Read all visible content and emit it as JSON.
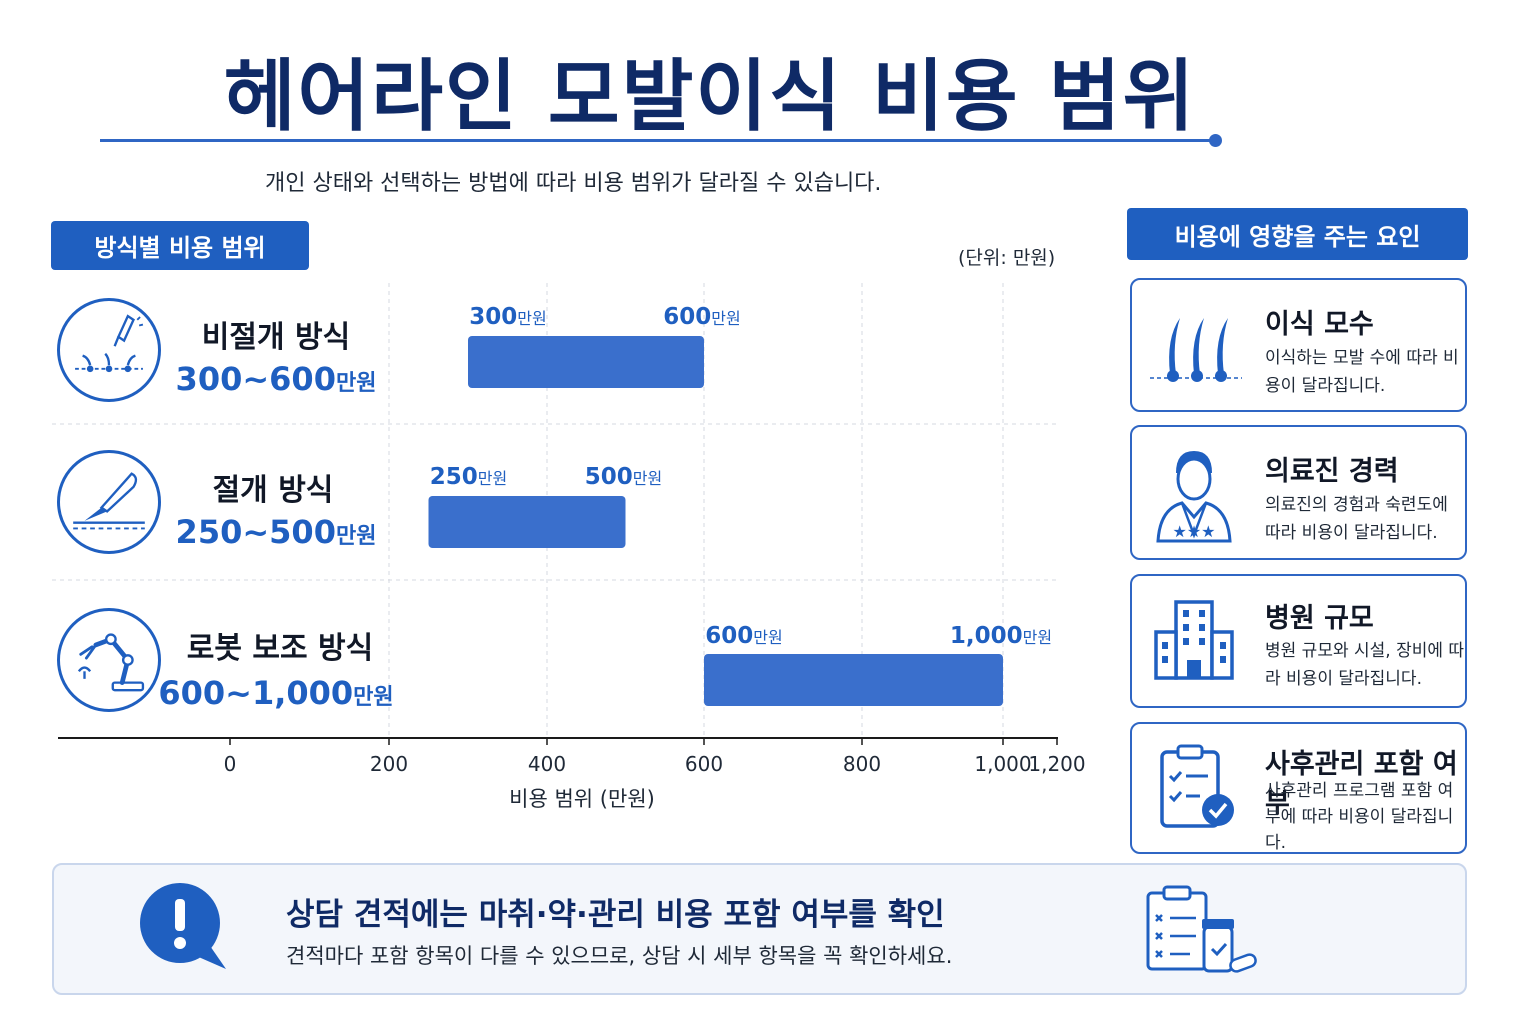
{
  "header": {
    "title": "헤어라인 모발이식 비용 범위",
    "subtitle": "개인 상태와 선택하는 방법에 따라 비용 범위가 달라질 수 있습니다."
  },
  "methods_section": {
    "tab_label": "방식별 비용 범위",
    "unit_label": "(단위: 만원)",
    "rows": [
      {
        "name": "비절개 방식",
        "range_num": "300~600",
        "range_unit": "만원",
        "icon": "needle-hair-icon"
      },
      {
        "name": "절개 방식",
        "range_num": "250~500",
        "range_unit": "만원",
        "icon": "scalpel-icon"
      },
      {
        "name": "로봇 보조 방식",
        "range_num": "600~1,000",
        "range_unit": "만원",
        "icon": "robot-arm-icon"
      }
    ]
  },
  "chart_data": {
    "type": "bar",
    "orientation": "horizontal-range",
    "categories": [
      "비절개 방식",
      "절개 방식",
      "로봇 보조 방식"
    ],
    "series": [
      {
        "values": [
          [
            300,
            600
          ],
          [
            250,
            500
          ],
          [
            600,
            1000
          ]
        ]
      }
    ],
    "low_labels": [
      "300",
      "250",
      "600"
    ],
    "high_labels": [
      "600",
      "500",
      "1,000"
    ],
    "label_unit": "만원",
    "xlabel": "비용 범위 (만원)",
    "xlim": [
      0,
      1200
    ],
    "xticks": [
      0,
      200,
      400,
      600,
      800,
      1000,
      1200
    ],
    "xtick_labels": [
      "0",
      "200",
      "400",
      "600",
      "800",
      "1,000",
      "1,200"
    ],
    "grid": true,
    "bar_color": "#3a6fcc"
  },
  "factors_section": {
    "tab_label": "비용에 영향을 주는 요인",
    "cards": [
      {
        "title": "이식 모수",
        "desc": "이식하는 모발 수에 따라 비용이 달라집니다.",
        "icon": "hair-follicle-icon"
      },
      {
        "title": "의료진 경력",
        "desc": "의료진의 경험과 숙련도에 따라 비용이 달라집니다.",
        "icon": "doctor-icon"
      },
      {
        "title": "병원 규모",
        "desc": "병원 규모와 시설, 장비에 따라 비용이 달라집니다.",
        "icon": "hospital-building-icon"
      },
      {
        "title": "사후관리 포함 여부",
        "desc": "사후관리 프로그램 포함 여부에 따라 비용이 달라집니다.",
        "icon": "clipboard-check-icon"
      }
    ]
  },
  "notice": {
    "title": "상담 견적에는 마취·약·관리 비용 포함 여부를 확인",
    "desc": "견적마다 포함 항목이 다를 수 있으므로, 상담 시 세부 항목을 꼭 확인하세요.",
    "icon": "exclamation-bubble-icon",
    "side_icon": "checklist-medicine-icon"
  },
  "colors": {
    "primary": "#1f5fc0",
    "title": "#0f2a66",
    "bar": "#3a6fcc"
  }
}
